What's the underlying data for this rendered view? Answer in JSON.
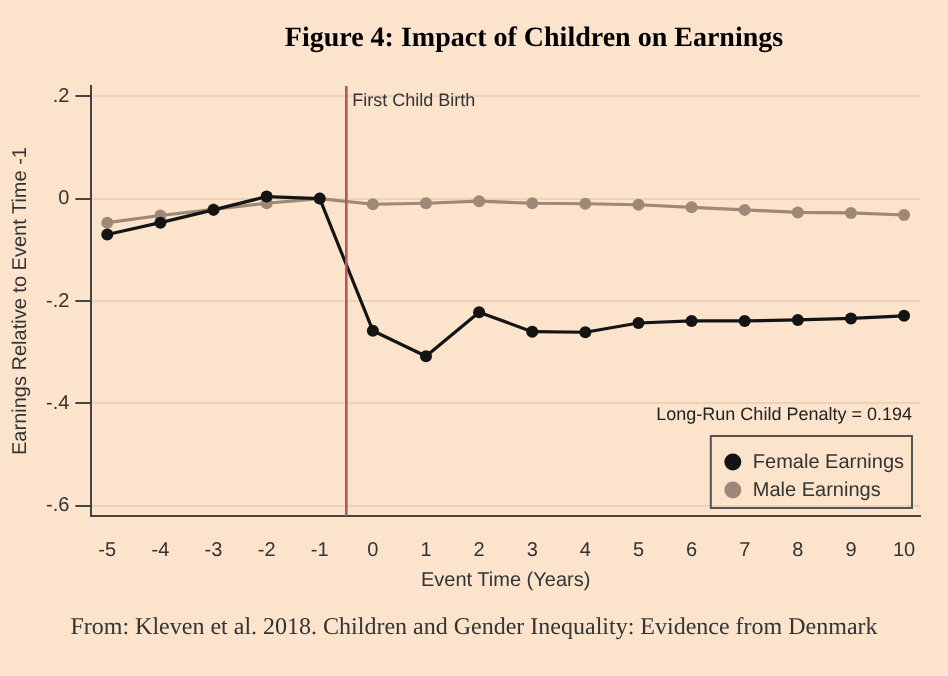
{
  "chart_data": {
    "type": "line",
    "title": "Figure 4: Impact of Children on Earnings",
    "xlabel": "Event Time (Years)",
    "ylabel": "Earnings Relative to Event Time -1",
    "x": [
      -5,
      -4,
      -3,
      -2,
      -1,
      0,
      1,
      2,
      3,
      4,
      5,
      6,
      7,
      8,
      9,
      10
    ],
    "series": [
      {
        "name": "Male Earnings",
        "color": "#a08878",
        "values": [
          -0.047,
          -0.033,
          -0.021,
          -0.009,
          0,
          -0.011,
          -0.009,
          -0.005,
          -0.009,
          -0.01,
          -0.012,
          -0.017,
          -0.022,
          -0.027,
          -0.028,
          -0.032
        ]
      },
      {
        "name": "Female Earnings",
        "color": "#141414",
        "values": [
          -0.07,
          -0.047,
          -0.022,
          0.004,
          0,
          -0.258,
          -0.308,
          -0.222,
          -0.26,
          -0.261,
          -0.243,
          -0.239,
          -0.239,
          -0.237,
          -0.234,
          -0.229
        ]
      }
    ],
    "xlim": [
      -5.3,
      10.3
    ],
    "xticks": [
      -5,
      -4,
      -3,
      -2,
      -1,
      0,
      1,
      2,
      3,
      4,
      5,
      6,
      7,
      8,
      9,
      10
    ],
    "ylim": [
      -0.62,
      0.22
    ],
    "yticks": [
      {
        "value": 0.2,
        "label": ".2"
      },
      0,
      {
        "value": -0.2,
        "label": "-.2"
      },
      {
        "value": -0.4,
        "label": "-.4"
      },
      {
        "value": -0.6,
        "label": "-.6"
      }
    ],
    "ref_lines": [
      {
        "axis": "x",
        "value": -0.5,
        "label": "First Child Birth",
        "color": "#b5545c"
      }
    ],
    "annotations": [
      "Long-Run Child Penalty = 0.194",
      "From: Kleven et al. 2018. Children and Gender Inequality: Evidence from Denmark"
    ],
    "grid": "y",
    "legend": "bottom right",
    "marker": "circle",
    "line_style": "solid"
  }
}
